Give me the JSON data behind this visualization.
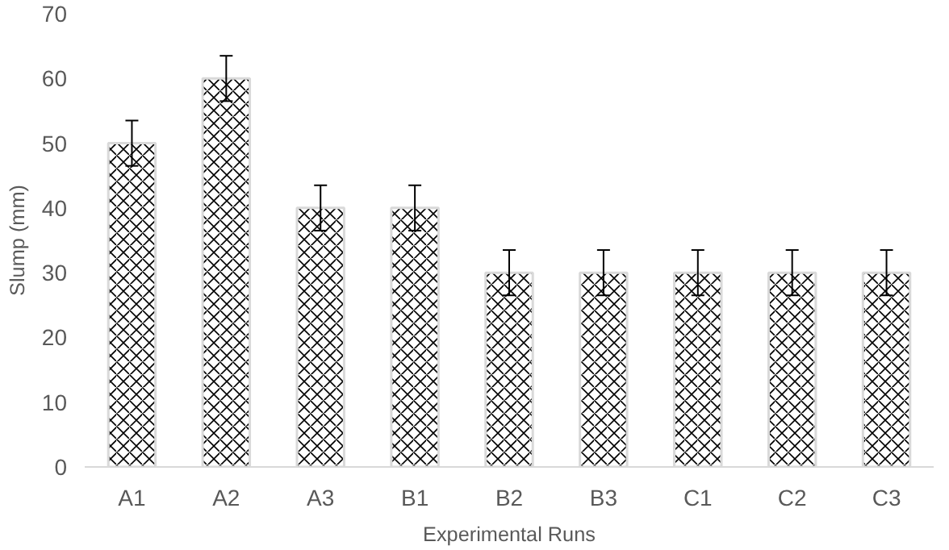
{
  "chart_data": {
    "type": "bar",
    "xlabel": "Experimental Runs",
    "ylabel": "Slump (mm)",
    "categories": [
      "A1",
      "A2",
      "A3",
      "B1",
      "B2",
      "B3",
      "C1",
      "C2",
      "C3"
    ],
    "values": [
      50,
      60,
      40,
      40,
      30,
      30,
      30,
      30,
      30
    ],
    "errors": [
      3.5,
      3.5,
      3.5,
      3.5,
      3.5,
      3.5,
      3.5,
      3.5,
      3.5
    ],
    "color": "#ffffff",
    "ylim": [
      0,
      70
    ],
    "yticks": [
      0,
      10,
      20,
      30,
      40,
      50,
      60,
      70
    ],
    "grid": false
  }
}
